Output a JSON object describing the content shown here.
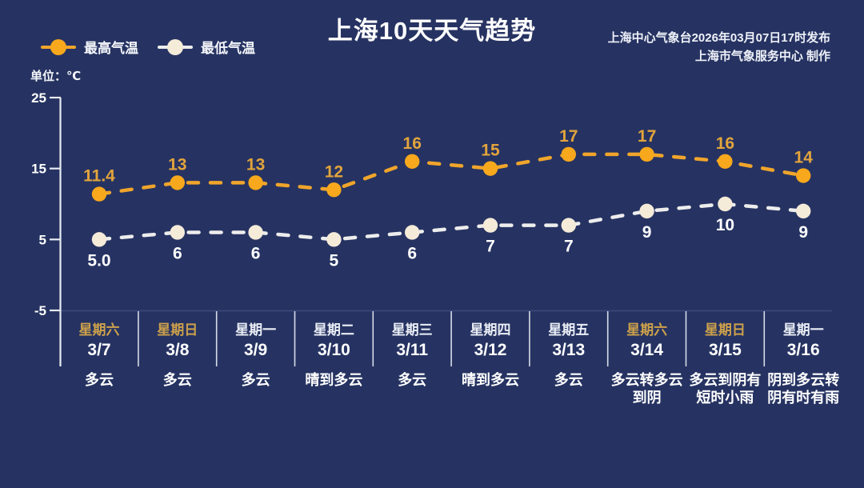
{
  "title": "上海10天天气趋势",
  "issuer": {
    "line1": "上海中心气象台2026年03月07日17时发布",
    "line2": "上海市气象服务中心  制作"
  },
  "unit_label": "单位：℃",
  "legend": [
    {
      "label": "最高气温",
      "line_color": "#F0A52B",
      "dot_color": "#F7A81C"
    },
    {
      "label": "最低气温",
      "line_color": "#EDEDED",
      "dot_color": "#F5EBD9"
    }
  ],
  "chart_data": {
    "type": "line",
    "title": "上海10天天气趋势",
    "x": [
      "3/7",
      "3/8",
      "3/9",
      "3/10",
      "3/11",
      "3/12",
      "3/13",
      "3/14",
      "3/15",
      "3/16"
    ],
    "series": [
      {
        "name": "最高气温",
        "values": [
          11.4,
          13,
          13,
          12,
          16,
          15,
          17,
          17,
          16,
          14
        ],
        "value_labels": [
          "11.4",
          "13",
          "13",
          "12",
          "16",
          "15",
          "17",
          "17",
          "16",
          "14"
        ],
        "line_color": "#F0A52B",
        "marker_color": "#F7A81C",
        "label_color": "#E2A43C",
        "label_position": "above"
      },
      {
        "name": "最低气温",
        "values": [
          5.0,
          6,
          6,
          5,
          6,
          7,
          7,
          9,
          10,
          9
        ],
        "value_labels": [
          "5.0",
          "6",
          "6",
          "5",
          "6",
          "7",
          "7",
          "9",
          "10",
          "9"
        ],
        "line_color": "#EDEDED",
        "marker_color": "#F5EBD9",
        "label_color": "#FFFFFF",
        "label_position": "below"
      }
    ],
    "ylabel": "单位：℃",
    "ylim": [
      -5,
      25
    ],
    "yticks": [
      25,
      15,
      5,
      -5
    ],
    "line_style": "dashed",
    "grid": false,
    "legend_position": "top-left"
  },
  "days": [
    {
      "weekday": "星期六",
      "weekend": true,
      "date": "3/7",
      "weather": "多云"
    },
    {
      "weekday": "星期日",
      "weekend": true,
      "date": "3/8",
      "weather": "多云"
    },
    {
      "weekday": "星期一",
      "weekend": false,
      "date": "3/9",
      "weather": "多云"
    },
    {
      "weekday": "星期二",
      "weekend": false,
      "date": "3/10",
      "weather": "晴到多云"
    },
    {
      "weekday": "星期三",
      "weekend": false,
      "date": "3/11",
      "weather": "多云"
    },
    {
      "weekday": "星期四",
      "weekend": false,
      "date": "3/12",
      "weather": "晴到多云"
    },
    {
      "weekday": "星期五",
      "weekend": false,
      "date": "3/13",
      "weather": "多云"
    },
    {
      "weekday": "星期六",
      "weekend": true,
      "date": "3/14",
      "weather": "多云转多云到阴"
    },
    {
      "weekday": "星期日",
      "weekend": true,
      "date": "3/15",
      "weather": "多云到阴有短时小雨"
    },
    {
      "weekday": "星期一",
      "weekend": false,
      "date": "3/16",
      "weather": "阴到多云转阴有时有雨"
    }
  ],
  "colors": {
    "background": "#263362",
    "axis": "#E8EBF2",
    "baseline": "#3C4A7C",
    "divider": "#D7DCE8",
    "weekend_gold": "#CDA14B"
  }
}
